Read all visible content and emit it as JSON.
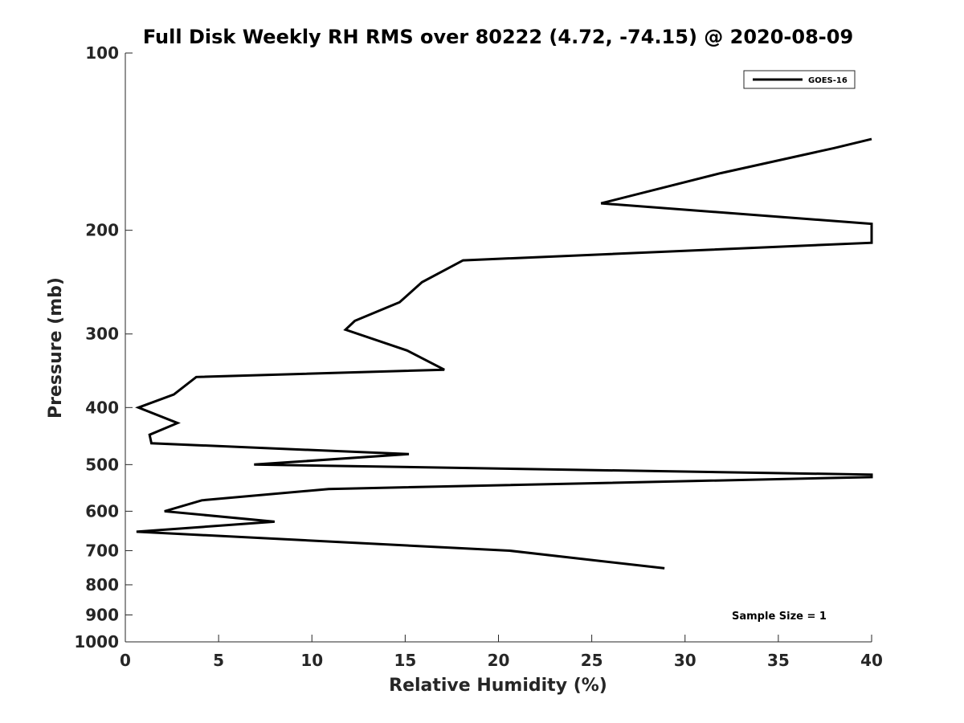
{
  "chart_data": {
    "type": "line",
    "title": "Full Disk Weekly RH RMS over 80222 (4.72, -74.15) @ 2020-08-09",
    "xlabel": "Relative Humidity (%)",
    "ylabel": "Pressure (mb)",
    "xlim": [
      0,
      40
    ],
    "ylim": [
      100,
      1000
    ],
    "y_scale": "log",
    "y_reversed": true,
    "x_ticks": [
      0,
      5,
      10,
      15,
      20,
      25,
      30,
      35,
      40
    ],
    "y_ticks": [
      100,
      200,
      300,
      400,
      500,
      600,
      700,
      800,
      900,
      1000
    ],
    "grid": false,
    "legend_position": "top-right",
    "series": [
      {
        "name": "GOES-16",
        "color": "#000000",
        "x": [
          28.9,
          20.6,
          0.6,
          8.0,
          2.1,
          4.1,
          10.9,
          40.0,
          40.0,
          6.9,
          15.2,
          1.4,
          1.3,
          2.8,
          0.7,
          2.6,
          3.8,
          17.1,
          15.1,
          11.8,
          12.3,
          14.7,
          15.9,
          18.1,
          40.0,
          40.0,
          25.5,
          31.9,
          38.0,
          40.0
        ],
        "y": [
          750,
          700,
          650,
          625,
          600,
          575,
          550,
          525,
          520,
          500,
          480,
          460,
          445,
          425,
          400,
          380,
          355,
          345,
          320,
          295,
          285,
          265,
          245,
          225,
          210,
          195,
          180,
          160,
          145,
          140
        ]
      }
    ],
    "annotations": [
      {
        "text": "Sample Size = 1",
        "position": "bottom-right"
      }
    ]
  }
}
